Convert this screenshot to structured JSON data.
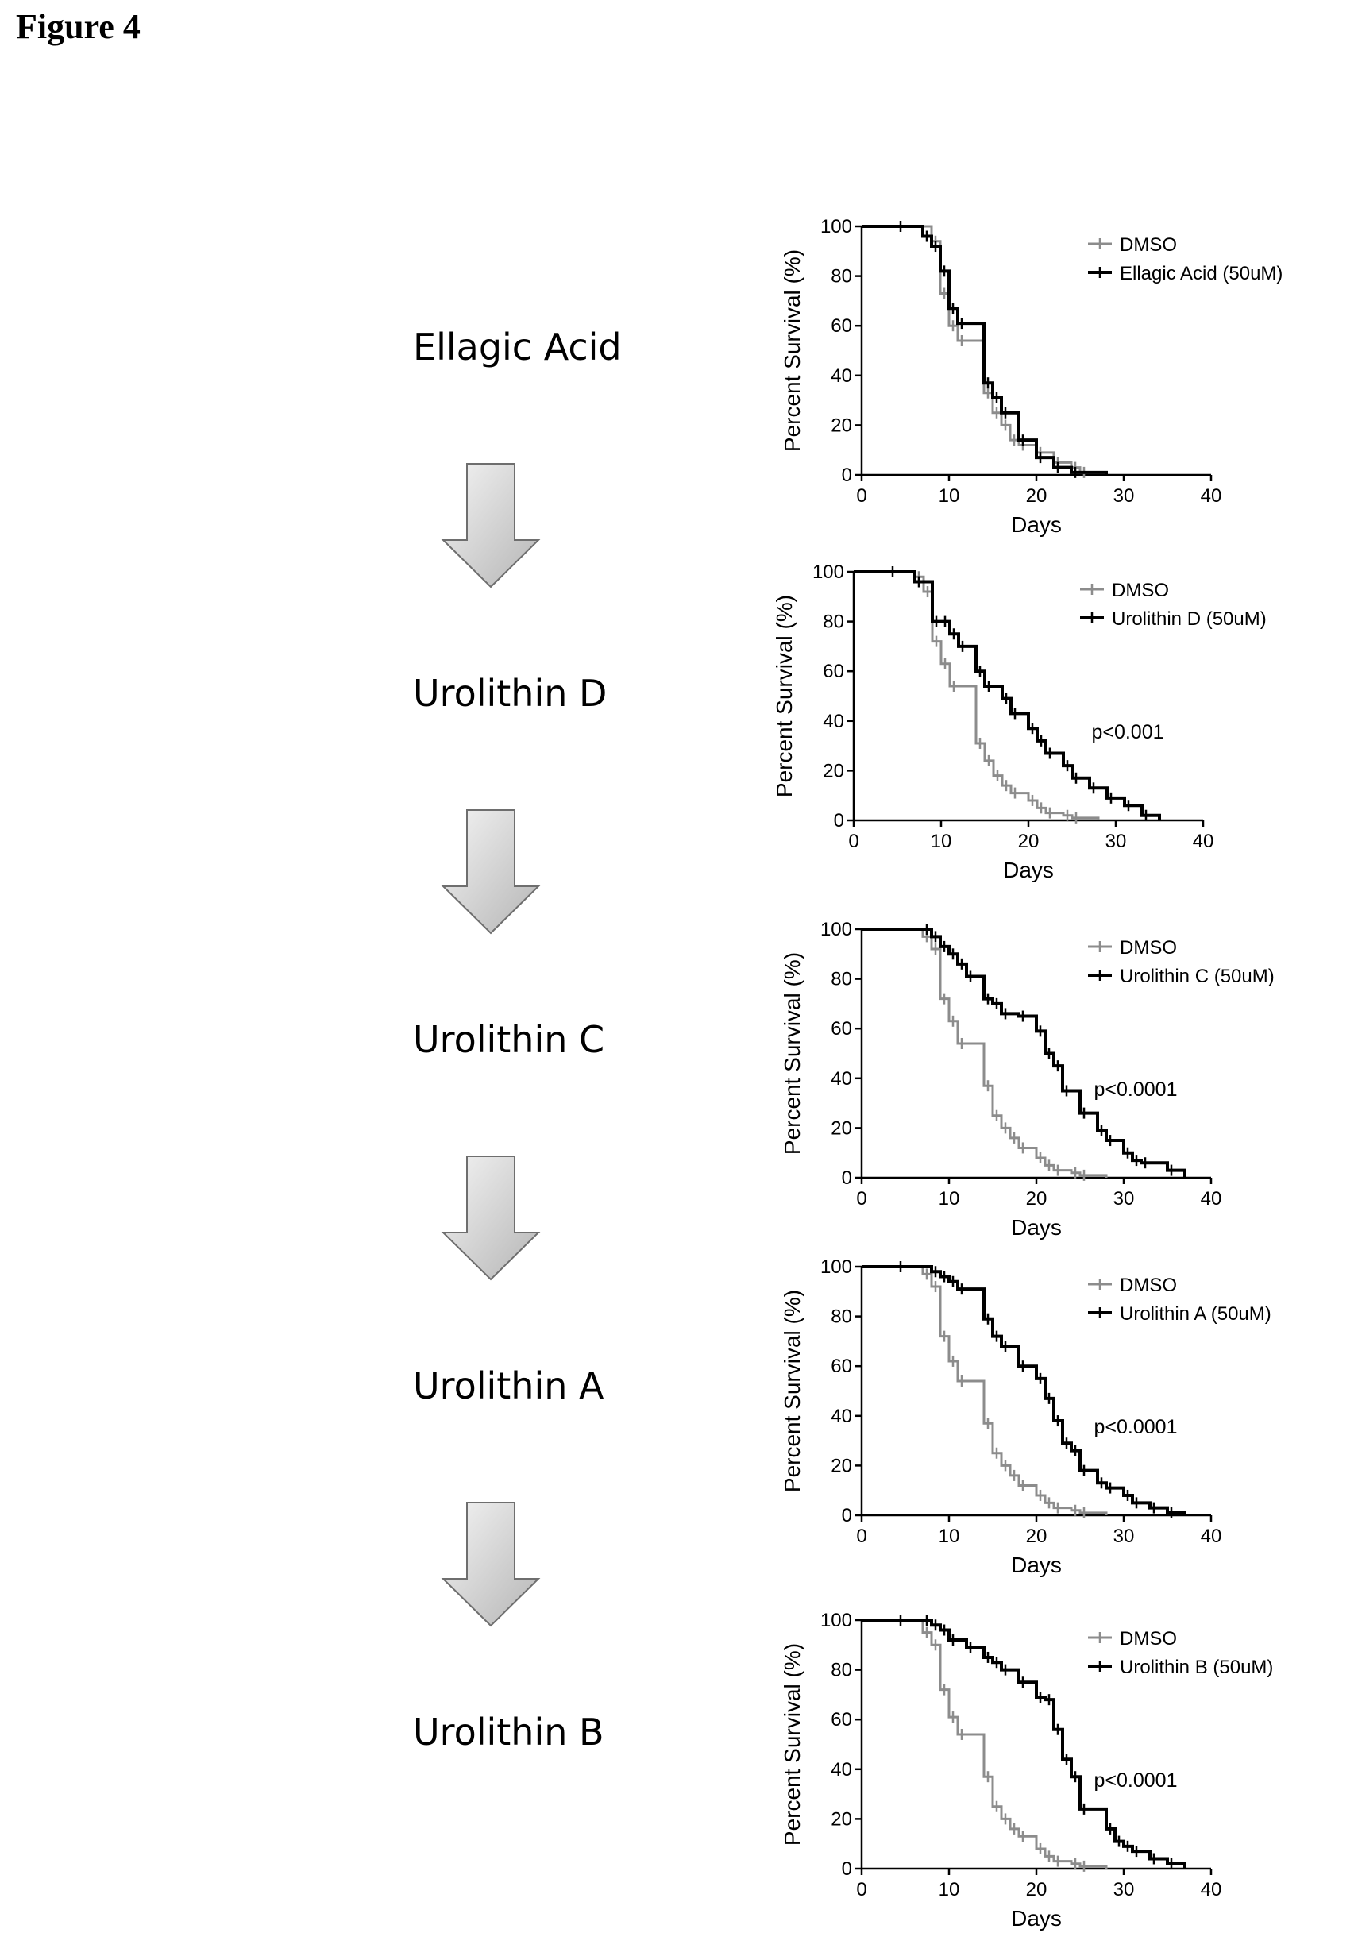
{
  "figure_title": "Figure 4",
  "compounds": [
    "Ellagic Acid",
    "Urolithin D",
    "Urolithin C",
    "Urolithin A",
    "Urolithin B"
  ],
  "colors": {
    "control": "#8c8c8c",
    "treatment": "#000000",
    "arrow_light": "#f3f3f3",
    "arrow_dark": "#b8b8b8"
  },
  "chart_data": [
    {
      "type": "line",
      "title": "",
      "xlabel": "Days",
      "ylabel": "Percent Survival (%)",
      "xlim": [
        0,
        40
      ],
      "ylim": [
        0,
        100
      ],
      "xticks": [
        0,
        10,
        20,
        30,
        40
      ],
      "yticks": [
        0,
        20,
        40,
        60,
        80,
        100
      ],
      "annotation": "",
      "series": [
        {
          "name": "DMSO",
          "role": "control",
          "x": [
            0,
            8,
            9,
            10,
            11,
            14,
            15,
            16,
            17,
            18,
            20,
            22,
            24,
            25,
            28
          ],
          "y": [
            100,
            94,
            73,
            60,
            54,
            33,
            25,
            20,
            14,
            12,
            9,
            5,
            3,
            1,
            0
          ]
        },
        {
          "name": "Ellagic Acid (50uM)",
          "role": "treatment",
          "x": [
            0,
            4,
            7,
            8,
            9,
            10,
            11,
            14,
            15,
            16,
            18,
            20,
            22,
            24,
            28
          ],
          "y": [
            100,
            100,
            96,
            92,
            82,
            67,
            61,
            37,
            31,
            25,
            14,
            7,
            3,
            1,
            0
          ]
        }
      ]
    },
    {
      "type": "line",
      "title": "",
      "xlabel": "Days",
      "ylabel": "Percent Survival (%)",
      "xlim": [
        0,
        40
      ],
      "ylim": [
        0,
        100
      ],
      "xticks": [
        0,
        10,
        20,
        30,
        40
      ],
      "yticks": [
        0,
        20,
        40,
        60,
        80,
        100
      ],
      "annotation": "p<0.001",
      "series": [
        {
          "name": "DMSO",
          "role": "control",
          "x": [
            0,
            7,
            8,
            9,
            10,
            11,
            14,
            15,
            16,
            17,
            18,
            20,
            21,
            22,
            24,
            25,
            28
          ],
          "y": [
            100,
            98,
            92,
            72,
            63,
            54,
            31,
            24,
            18,
            14,
            11,
            8,
            5,
            3,
            2,
            1,
            0
          ]
        },
        {
          "name": "Urolithin D (50uM)",
          "role": "treatment",
          "x": [
            0,
            4,
            7,
            9,
            10,
            11,
            12,
            14,
            15,
            17,
            18,
            20,
            21,
            22,
            24,
            25,
            27,
            29,
            31,
            33,
            35
          ],
          "y": [
            100,
            100,
            96,
            80,
            80,
            75,
            70,
            60,
            54,
            49,
            43,
            37,
            32,
            27,
            22,
            17,
            13,
            9,
            6,
            2,
            0
          ]
        }
      ]
    },
    {
      "type": "line",
      "title": "",
      "xlabel": "Days",
      "ylabel": "Percent Survival (%)",
      "xlim": [
        0,
        40
      ],
      "ylim": [
        0,
        100
      ],
      "xticks": [
        0,
        10,
        20,
        30,
        40
      ],
      "yticks": [
        0,
        20,
        40,
        60,
        80,
        100
      ],
      "annotation": "p<0.0001",
      "series": [
        {
          "name": "DMSO",
          "role": "control",
          "x": [
            0,
            7,
            8,
            9,
            10,
            11,
            14,
            15,
            16,
            17,
            18,
            20,
            21,
            22,
            24,
            25,
            28
          ],
          "y": [
            100,
            97,
            92,
            72,
            63,
            54,
            37,
            25,
            20,
            16,
            12,
            8,
            5,
            3,
            2,
            1,
            0
          ]
        },
        {
          "name": "Urolithin C (50uM)",
          "role": "treatment",
          "x": [
            0,
            7,
            8,
            9,
            10,
            11,
            12,
            14,
            15,
            16,
            18,
            20,
            21,
            22,
            23,
            25,
            27,
            28,
            30,
            31,
            32,
            35,
            37
          ],
          "y": [
            100,
            100,
            97,
            93,
            90,
            86,
            81,
            72,
            70,
            66,
            65,
            59,
            50,
            45,
            35,
            26,
            19,
            15,
            10,
            7,
            6,
            3,
            0
          ]
        }
      ]
    },
    {
      "type": "line",
      "title": "",
      "xlabel": "Days",
      "ylabel": "Percent Survival (%)",
      "xlim": [
        0,
        40
      ],
      "ylim": [
        0,
        100
      ],
      "xticks": [
        0,
        10,
        20,
        30,
        40
      ],
      "yticks": [
        0,
        20,
        40,
        60,
        80,
        100
      ],
      "annotation": "p<0.0001",
      "series": [
        {
          "name": "DMSO",
          "role": "control",
          "x": [
            0,
            7,
            8,
            9,
            10,
            11,
            14,
            15,
            16,
            17,
            18,
            20,
            21,
            22,
            24,
            25,
            28
          ],
          "y": [
            100,
            97,
            92,
            72,
            62,
            54,
            37,
            25,
            20,
            16,
            12,
            8,
            5,
            3,
            2,
            1,
            0
          ]
        },
        {
          "name": "Urolithin A (50uM)",
          "role": "treatment",
          "x": [
            0,
            4,
            8,
            9,
            10,
            11,
            14,
            15,
            16,
            18,
            20,
            21,
            22,
            23,
            24,
            25,
            27,
            28,
            30,
            31,
            33,
            35,
            37
          ],
          "y": [
            100,
            100,
            98,
            96,
            94,
            91,
            79,
            72,
            68,
            60,
            55,
            47,
            38,
            29,
            26,
            18,
            13,
            11,
            8,
            5,
            3,
            1,
            0
          ]
        }
      ]
    },
    {
      "type": "line",
      "title": "",
      "xlabel": "Days",
      "ylabel": "Percent Survival (%)",
      "xlim": [
        0,
        40
      ],
      "ylim": [
        0,
        100
      ],
      "xticks": [
        0,
        10,
        20,
        30,
        40
      ],
      "yticks": [
        0,
        20,
        40,
        60,
        80,
        100
      ],
      "annotation": "p<0.0001",
      "series": [
        {
          "name": "DMSO",
          "role": "control",
          "x": [
            0,
            7,
            8,
            9,
            10,
            11,
            14,
            15,
            16,
            17,
            18,
            20,
            21,
            22,
            24,
            25,
            28
          ],
          "y": [
            100,
            95,
            90,
            72,
            61,
            54,
            37,
            25,
            20,
            16,
            13,
            8,
            5,
            3,
            2,
            1,
            0
          ]
        },
        {
          "name": "Urolithin B (50uM)",
          "role": "treatment",
          "x": [
            0,
            4,
            7,
            8,
            9,
            10,
            12,
            14,
            15,
            16,
            18,
            20,
            21,
            22,
            23,
            24,
            25,
            28,
            29,
            30,
            31,
            33,
            35,
            37
          ],
          "y": [
            100,
            100,
            100,
            98,
            96,
            92,
            89,
            85,
            83,
            80,
            75,
            69,
            68,
            56,
            44,
            37,
            24,
            16,
            11,
            9,
            7,
            4,
            2,
            0
          ]
        }
      ]
    }
  ]
}
